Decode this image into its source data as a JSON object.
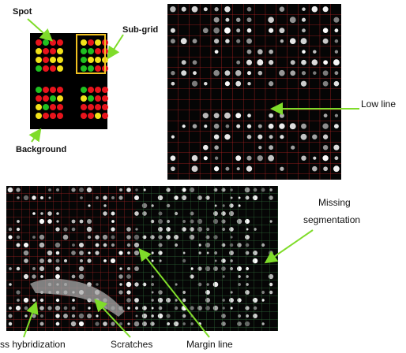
{
  "labels": {
    "spot": "Spot",
    "sub_grid": "Sub-grid",
    "background": "Background",
    "low_line": "Low line",
    "missing": [
      "Missing",
      "segmentation"
    ],
    "cross_hybridization": "ss hybridization",
    "scratches": "Scratches",
    "margin_line": "Margin line"
  }
}
